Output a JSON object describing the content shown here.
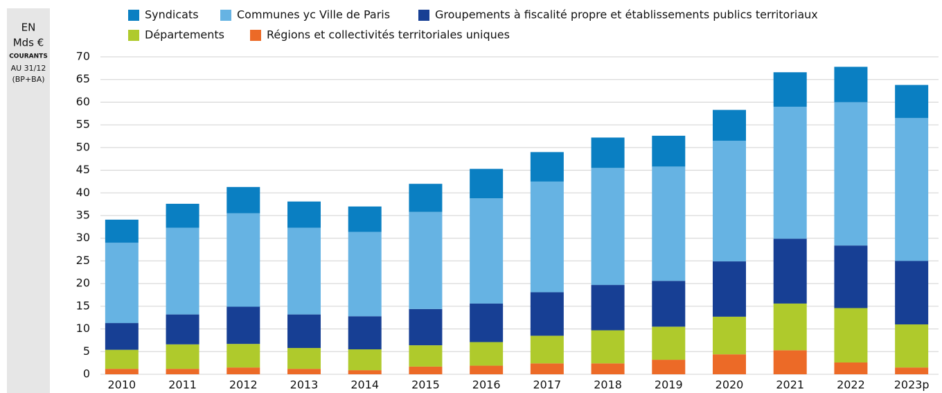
{
  "chart_data": {
    "type": "stacked_bar",
    "unit_label": [
      "EN",
      "Mds €",
      "COURANTS",
      "AU 31/12",
      "(BP+BA)"
    ],
    "categories": [
      "2010",
      "2011",
      "2012",
      "2013",
      "2014",
      "2015",
      "2016",
      "2017",
      "2018",
      "2019",
      "2020",
      "2021",
      "2022",
      "2023p"
    ],
    "series": [
      {
        "name": "Syndicats",
        "color": "#0a7fc2",
        "values": [
          5.1,
          5.3,
          5.8,
          5.8,
          5.6,
          6.2,
          6.5,
          6.5,
          6.7,
          6.8,
          6.8,
          7.6,
          7.8,
          7.3
        ]
      },
      {
        "name": "Communes yc Ville de Paris",
        "color": "#66b3e3",
        "values": [
          17.7,
          19.1,
          20.6,
          19.1,
          18.6,
          21.4,
          23.2,
          24.4,
          25.8,
          25.2,
          26.6,
          29.1,
          31.6,
          31.5
        ]
      },
      {
        "name": "Groupements à fiscalité propre et établissements publics territoriaux",
        "color": "#173f94",
        "values": [
          5.9,
          6.6,
          8.2,
          7.4,
          7.3,
          8.0,
          8.5,
          9.6,
          10.0,
          10.1,
          12.2,
          14.3,
          13.8,
          14.0
        ]
      },
      {
        "name": "Départements",
        "color": "#afca2c",
        "values": [
          4.2,
          5.4,
          5.2,
          4.6,
          4.6,
          4.7,
          5.2,
          6.1,
          7.3,
          7.3,
          8.3,
          10.3,
          12.0,
          9.5
        ]
      },
      {
        "name": "Régions et collectivités territoriales uniques",
        "color": "#ec6a27",
        "values": [
          1.2,
          1.2,
          1.5,
          1.2,
          0.9,
          1.7,
          1.9,
          2.4,
          2.4,
          3.2,
          4.4,
          5.3,
          2.6,
          1.5
        ]
      }
    ],
    "ylim": [
      0,
      70
    ],
    "yticks": [
      0,
      5,
      10,
      15,
      20,
      25,
      30,
      35,
      40,
      45,
      50,
      55,
      60,
      65,
      70
    ],
    "grid": true
  }
}
